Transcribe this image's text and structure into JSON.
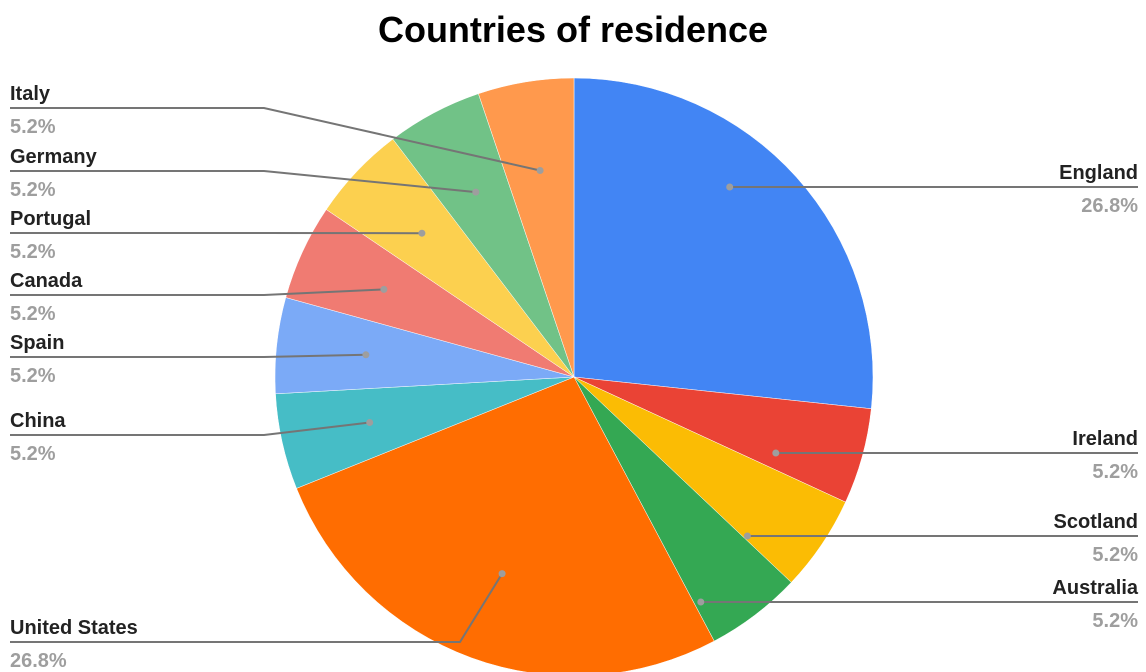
{
  "chart_data": {
    "type": "pie",
    "title": "Countries of residence",
    "slices": [
      {
        "label": "England",
        "value": 26.8,
        "percent_label": "26.8%",
        "color": "#4285f4"
      },
      {
        "label": "Ireland",
        "value": 5.2,
        "percent_label": "5.2%",
        "color": "#ea4335"
      },
      {
        "label": "Scotland",
        "value": 5.2,
        "percent_label": "5.2%",
        "color": "#fbbc04"
      },
      {
        "label": "Australia",
        "value": 5.2,
        "percent_label": "5.2%",
        "color": "#34a853"
      },
      {
        "label": "United States",
        "value": 26.8,
        "percent_label": "26.8%",
        "color": "#ff6d01"
      },
      {
        "label": "China",
        "value": 5.2,
        "percent_label": "5.2%",
        "color": "#46bdc6"
      },
      {
        "label": "Spain",
        "value": 5.2,
        "percent_label": "5.2%",
        "color": "#7baaf7"
      },
      {
        "label": "Canada",
        "value": 5.2,
        "percent_label": "5.2%",
        "color": "#f07b72"
      },
      {
        "label": "Portugal",
        "value": 5.2,
        "percent_label": "5.2%",
        "color": "#fcd04f"
      },
      {
        "label": "Germany",
        "value": 5.2,
        "percent_label": "5.2%",
        "color": "#71c287"
      },
      {
        "label": "Italy",
        "value": 5.2,
        "percent_label": "5.2%",
        "color": "#ff994d"
      }
    ],
    "legend": "none"
  }
}
